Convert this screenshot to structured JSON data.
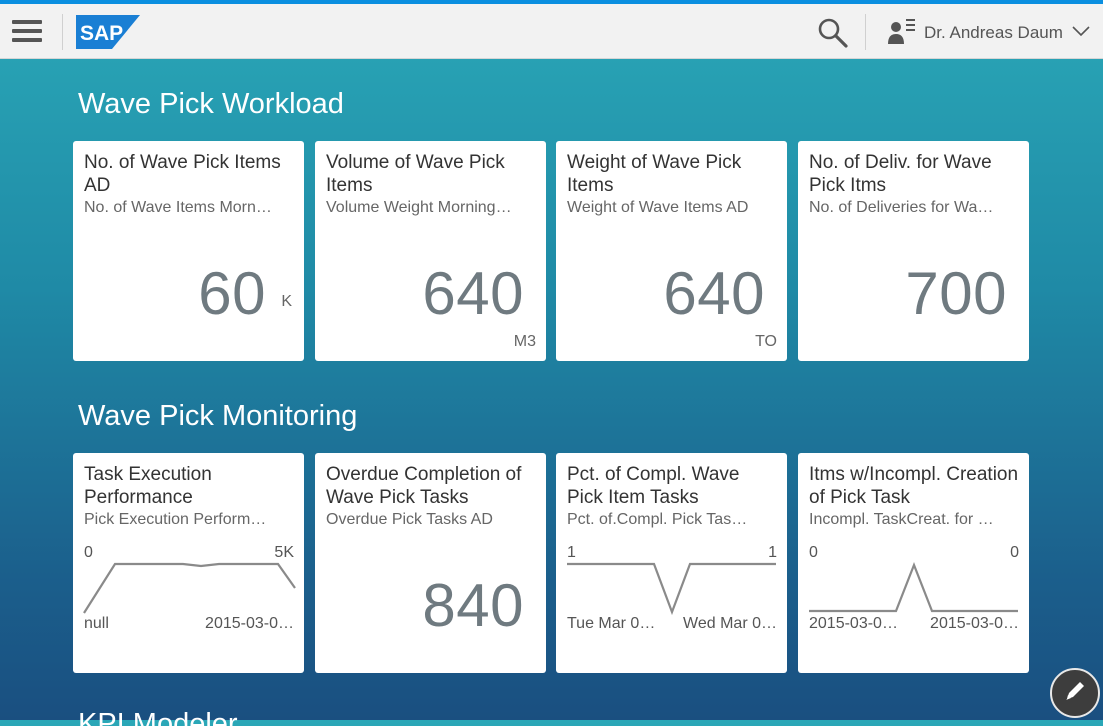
{
  "shell": {
    "user_name": "Dr. Andreas Daum",
    "logo_text": "SAP",
    "icons": [
      "hamburger-icon",
      "sap-logo",
      "search-icon",
      "user-icon",
      "chevron-down-icon",
      "edit-pencil-icon"
    ]
  },
  "sections": [
    {
      "title": "Wave Pick Workload",
      "tiles": [
        {
          "title": "No. of Wave Pick Items AD",
          "subtitle": "No. of Wave Items Morn…",
          "value": "60",
          "scale": "K",
          "unit": ""
        },
        {
          "title": "Volume of Wave Pick Items",
          "subtitle": "Volume Weight Morning…",
          "value": "640",
          "scale": "",
          "unit": "M3"
        },
        {
          "title": "Weight of Wave Pick Items",
          "subtitle": "Weight of Wave Items AD",
          "value": "640",
          "scale": "",
          "unit": "TO"
        },
        {
          "title": "No. of Deliv. for Wave Pick Itms",
          "subtitle": "No. of Deliveries for Wa…",
          "value": "700",
          "scale": "",
          "unit": ""
        }
      ]
    },
    {
      "title": "Wave Pick Monitoring",
      "tiles": [
        {
          "title": "Task Execution Performance",
          "subtitle": "Pick Execution Perform…",
          "chart": {
            "top_left": "0",
            "top_right": "5K",
            "bottom_left": "null",
            "bottom_right": "2015-03-0…"
          }
        },
        {
          "title": "Overdue Completion of Wave Pick Tasks",
          "subtitle": "Overdue Pick Tasks AD",
          "value": "840"
        },
        {
          "title": "Pct. of Compl. Wave Pick Item Tasks",
          "subtitle": "Pct. of.Compl. Pick Tas…",
          "chart": {
            "top_left": "1",
            "top_right": "1",
            "bottom_left": "Tue Mar 0…",
            "bottom_right": "Wed Mar 0…"
          }
        },
        {
          "title": "Itms w/Incompl. Creation of Pick Task",
          "subtitle": "Incompl. TaskCreat. for …",
          "chart": {
            "top_left": "0",
            "top_right": "0",
            "bottom_left": "2015-03-0…",
            "bottom_right": "2015-03-0…"
          }
        }
      ]
    },
    {
      "title": "KPI Modeler"
    }
  ],
  "colors": {
    "accent_bar": "#0a8fe0",
    "kpi_text": "#6f7a80",
    "tile_bg": "#ffffff"
  }
}
